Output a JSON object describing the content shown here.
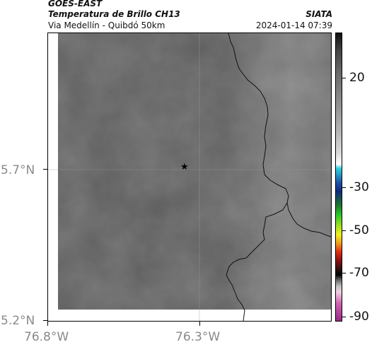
{
  "header": {
    "satellite": "GOES-EAST",
    "product": "Temperatura de Brillo CH13",
    "region": "Via Medellín - Quibdó 50km",
    "agency": "SIATA",
    "timestamp": "2024-01-14 07:39"
  },
  "map": {
    "lat_labels": [
      "5.7°N",
      "5.2°N"
    ],
    "lon_labels": [
      "76.8°W",
      "76.3°W"
    ],
    "marker": "★",
    "marker_icon": "star-icon",
    "base_color": "#5e5e5e"
  },
  "colorbar": {
    "labels": [
      "20",
      "-30",
      "-50",
      "-70",
      "-90"
    ],
    "colors": [
      "#111111",
      "#8e8e8e",
      "#ffffff",
      "#30d0e0",
      "#1d4fa8",
      "#26c52a",
      "#f0f020",
      "#e03010",
      "#000000",
      "#9a2a8a"
    ]
  }
}
